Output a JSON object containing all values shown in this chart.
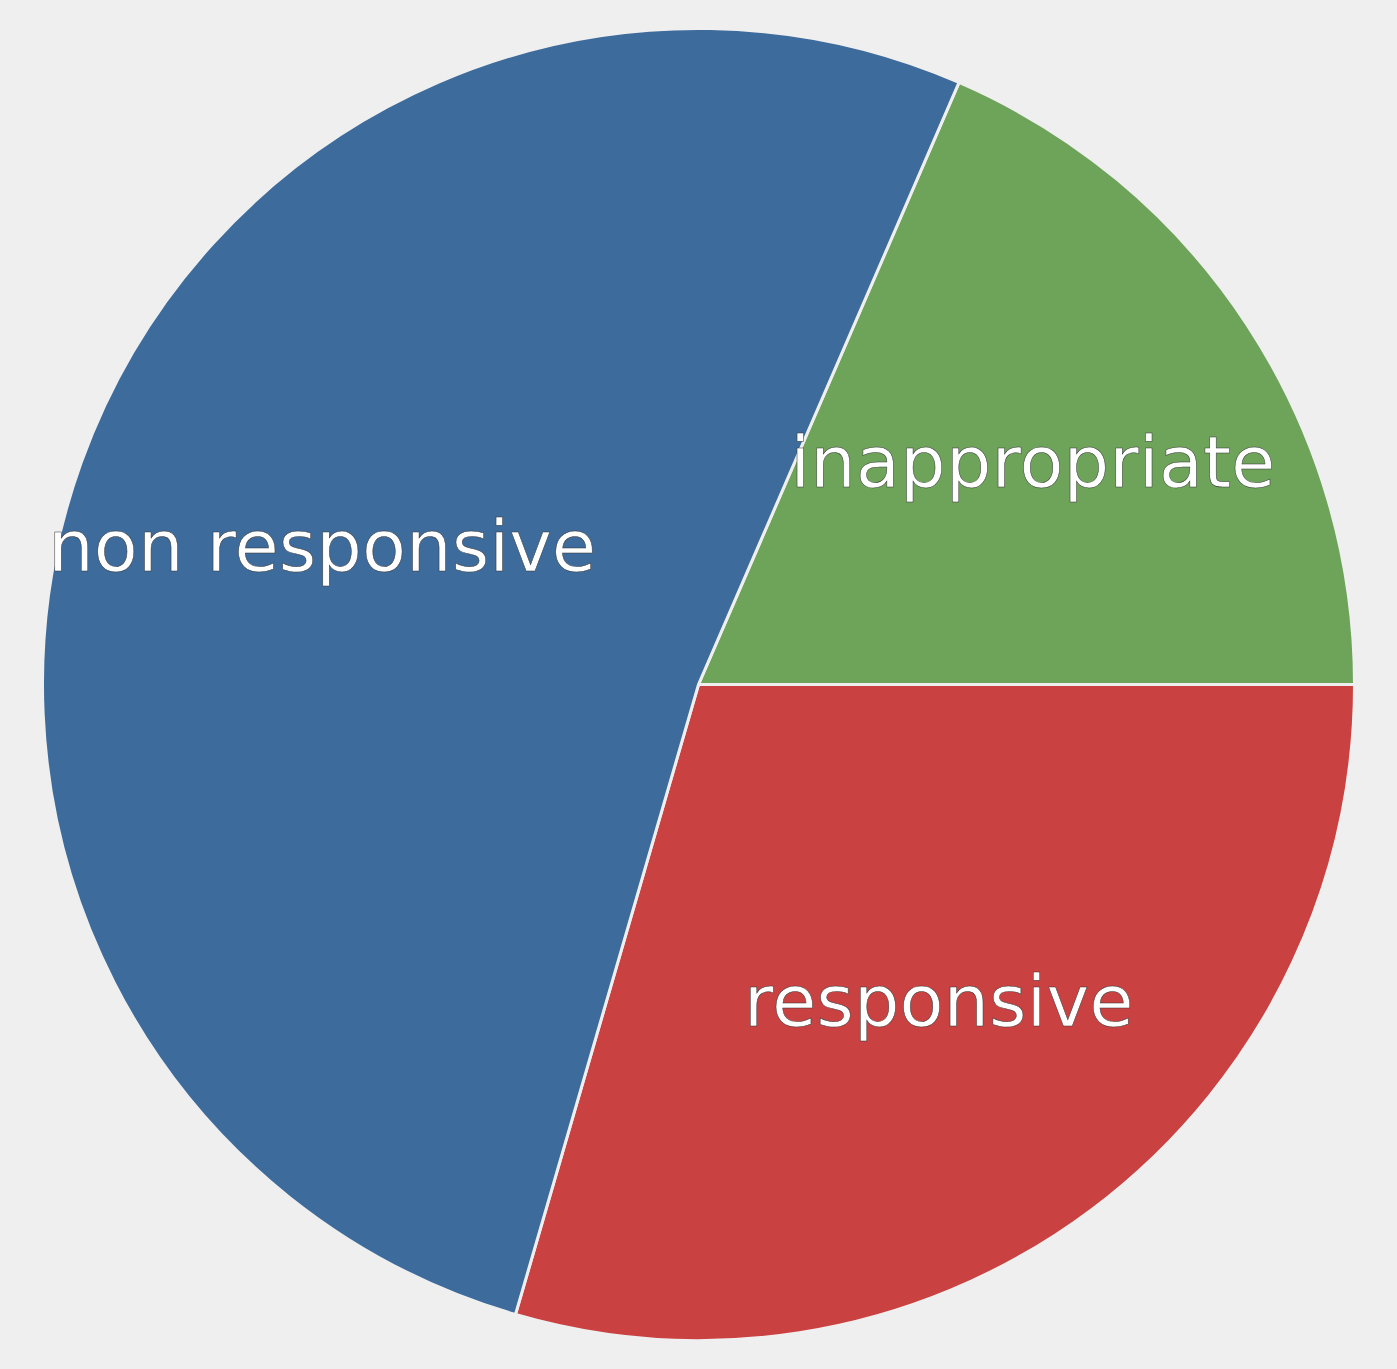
{
  "chart_data": {
    "type": "pie",
    "categories": [
      "inappropriate",
      "responsive",
      "non responsive"
    ],
    "values": [
      18.5,
      29.5,
      52
    ],
    "colors": [
      "#6ea35a",
      "#c94140",
      "#3d6b9c"
    ]
  }
}
